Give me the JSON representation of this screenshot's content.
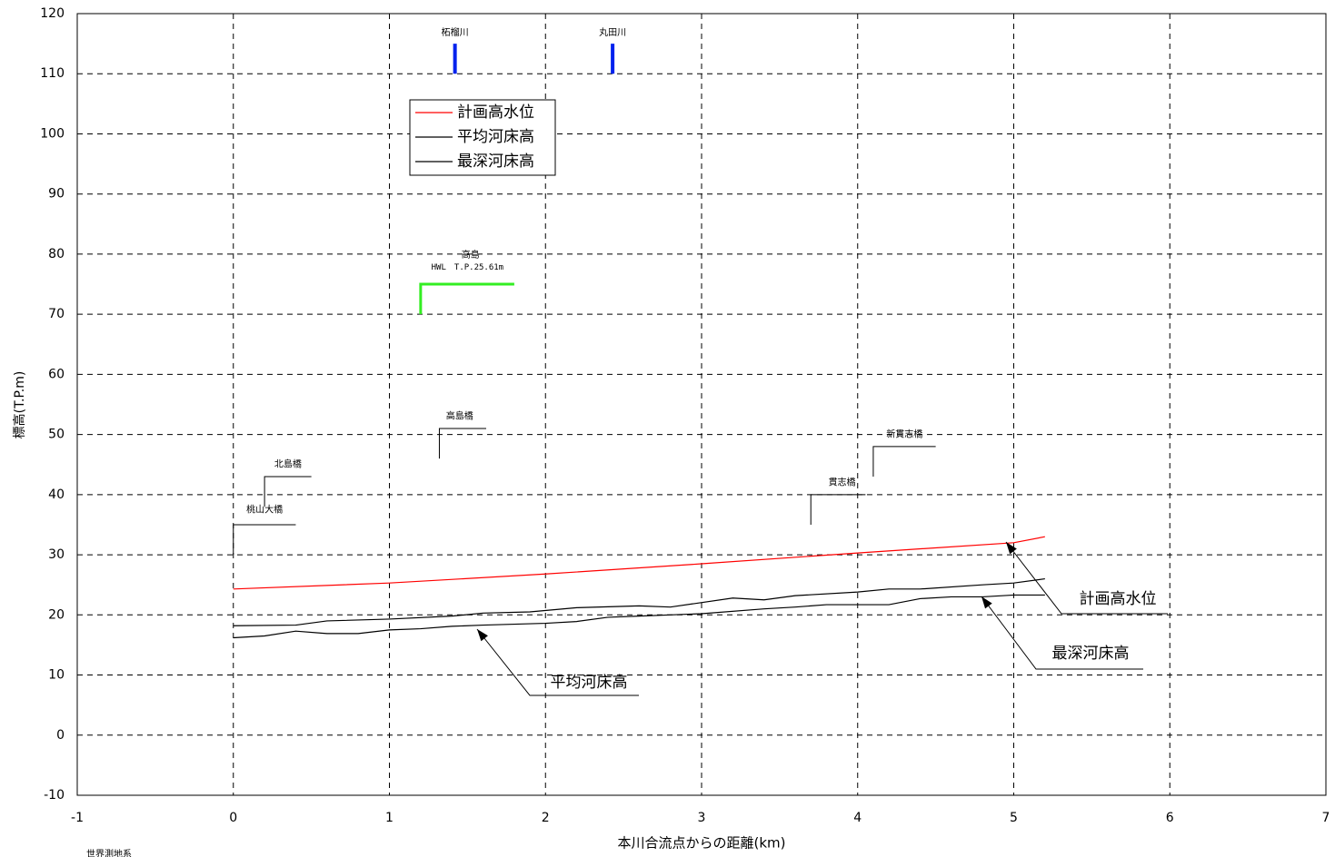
{
  "chart_data": {
    "type": "line",
    "xlabel": "本川合流点からの距離(km)",
    "ylabel": "標高(T.P.m)",
    "xlim": [
      -1,
      7
    ],
    "xticks": [
      -1,
      0,
      1,
      2,
      3,
      4,
      5,
      6,
      7
    ],
    "ylim": [
      -10,
      120
    ],
    "yticks": [
      -10,
      0,
      10,
      20,
      30,
      40,
      50,
      60,
      70,
      80,
      90,
      100,
      110,
      120
    ],
    "grid": true,
    "series": [
      {
        "name": "計画高水位",
        "color": "#ff0000",
        "x": [
          0,
          1,
          2,
          3,
          4,
          5,
          5.2
        ],
        "values": [
          24.3,
          25.3,
          26.8,
          28.5,
          30.3,
          32,
          33
        ]
      },
      {
        "name": "平均河床高",
        "color": "#000000",
        "x": [
          0,
          0.4,
          0.6,
          1,
          1.4,
          1.6,
          1.9,
          2.2,
          2.6,
          2.8,
          3.2,
          3.4,
          3.6,
          4,
          4.2,
          4.4,
          4.8,
          5,
          5.2
        ],
        "values": [
          18.2,
          18.3,
          19,
          19.3,
          19.8,
          20.3,
          20.5,
          21.2,
          21.5,
          21.3,
          22.8,
          22.5,
          23.2,
          23.8,
          24.3,
          24.3,
          25,
          25.3,
          26
        ]
      },
      {
        "name": "最深河床高",
        "color": "#000000",
        "x": [
          0,
          0.2,
          0.4,
          0.6,
          0.8,
          1,
          1.2,
          1.4,
          1.6,
          2,
          2.2,
          2.4,
          2.6,
          2.8,
          3,
          3.4,
          3.6,
          3.8,
          4.2,
          4.4,
          4.6,
          4.8,
          5,
          5.2
        ],
        "values": [
          16.2,
          16.5,
          17.3,
          16.9,
          16.9,
          17.5,
          17.7,
          18.1,
          18.3,
          18.6,
          18.9,
          19.6,
          19.8,
          20,
          20.2,
          21,
          21.3,
          21.7,
          21.7,
          22.7,
          23,
          23,
          23.3,
          23.3
        ]
      }
    ],
    "bridges": [
      "桃山大橋",
      "北島橋",
      "高島橋",
      "貫志橋",
      "新貫志橋"
    ],
    "tributaries": [
      "柘榴川",
      "丸田川"
    ],
    "hwl_station": "高島",
    "hwl_label": "HWL　T.P.25.61m",
    "callouts": [
      "計画高水位",
      "最深河床高",
      "平均河床高"
    ],
    "footnote": "世界測地系"
  }
}
